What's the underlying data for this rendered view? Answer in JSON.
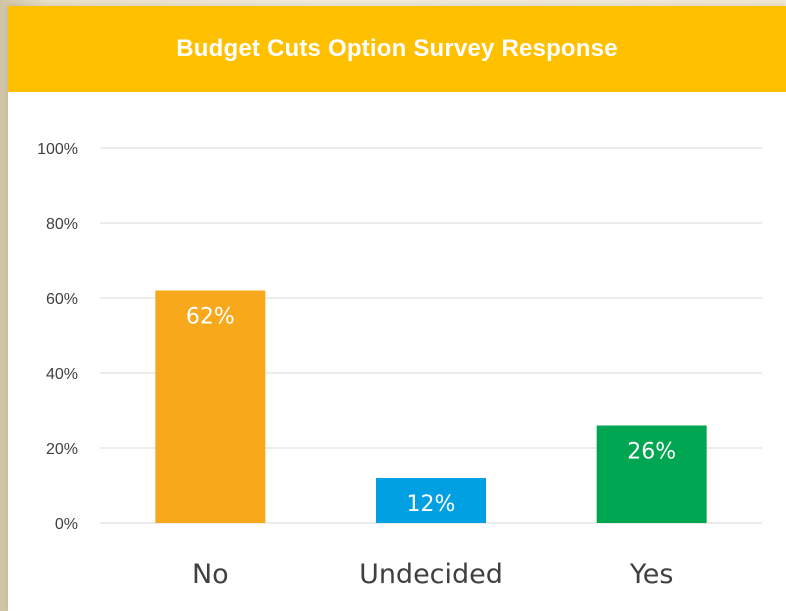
{
  "chart_data": {
    "type": "bar",
    "title": "Budget Cuts Option Survey Response",
    "categories": [
      "No",
      "Undecided",
      "Yes"
    ],
    "values": [
      62,
      12,
      26
    ],
    "data_labels": [
      "62%",
      "12%",
      "26%"
    ],
    "ylim": [
      0,
      100
    ],
    "yticks": [
      0,
      20,
      40,
      60,
      80,
      100
    ],
    "ytick_labels": [
      "0%",
      "20%",
      "40%",
      "60%",
      "80%",
      "100%"
    ],
    "grid": true,
    "colors": [
      "#f7a81b",
      "#00a0e3",
      "#00a651"
    ],
    "title_bar_color": "#ffc000",
    "legend": "none"
  }
}
